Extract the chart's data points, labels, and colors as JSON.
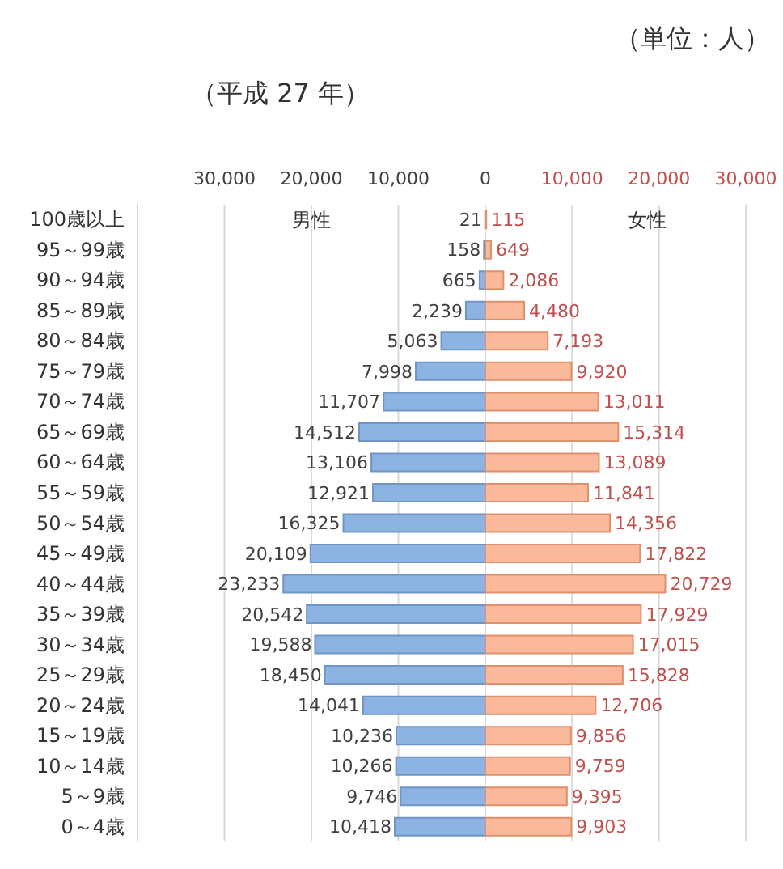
{
  "chart_data": [
    {
      "type": "bar",
      "orientation": "horizontal",
      "title": "（平成 27 年）",
      "annotations": [
        "（単位：人）"
      ],
      "categories": [
        "100歳以上",
        "95～99歳",
        "90～94歳",
        "85～89歳",
        "80～84歳",
        "75～79歳",
        "70～74歳",
        "65～69歳",
        "60～64歳",
        "55～59歳",
        "50～54歳",
        "45～49歳",
        "40～44歳",
        "35～39歳",
        "30～34歳",
        "25～29歳",
        "20～24歳",
        "15～19歳",
        "10～14歳",
        "5～9歳",
        "0～4歳"
      ],
      "series": [
        {
          "name": "男性",
          "color": "#8db3e2",
          "values": [
            21,
            158,
            665,
            2239,
            5063,
            7998,
            11707,
            14512,
            13106,
            12921,
            16325,
            20109,
            23233,
            20542,
            19588,
            18450,
            14041,
            10236,
            10266,
            9746,
            10418
          ],
          "value_labels": [
            "21",
            "158",
            "665",
            "2,239",
            "5,063",
            "7,998",
            "11,707",
            "14,512",
            "13,106",
            "12,921",
            "16,325",
            "20,109",
            "23,233",
            "20,542",
            "19,588",
            "18,450",
            "14,041",
            "10,236",
            "10,266",
            "9,746",
            "10,418"
          ]
        }
      ],
      "xlim": [
        40000,
        0
      ],
      "xticks": [
        {
          "value": 40000,
          "label": null
        },
        {
          "value": 30000,
          "label": "30,000"
        },
        {
          "value": 20000,
          "label": "20,000"
        },
        {
          "value": 10000,
          "label": "10,000"
        },
        0
      ],
      "grid": "x"
    },
    {
      "type": "bar",
      "orientation": "horizontal",
      "categories": [
        null,
        null,
        null,
        null,
        null,
        null,
        null,
        null,
        null,
        null,
        null,
        null,
        null,
        null,
        null,
        null,
        null,
        null,
        null,
        null,
        null
      ],
      "series": [
        {
          "name": "女性",
          "color": "#f9b99a",
          "values": [
            115,
            649,
            2086,
            4480,
            7193,
            9920,
            13011,
            15314,
            13089,
            11841,
            14356,
            17822,
            20729,
            17929,
            17015,
            15828,
            12706,
            9856,
            9759,
            9395,
            9903
          ],
          "value_labels": [
            "115",
            "649",
            "2,086",
            "4,480",
            "7,193",
            "9,920",
            "13,011",
            "15,314",
            "13,089",
            "11,841",
            "14,356",
            "17,822",
            "20,729",
            "17,929",
            "17,015",
            "15,828",
            "12,706",
            "9,856",
            "9,759",
            "9,395",
            "9,903"
          ]
        }
      ],
      "xlim": [
        0,
        30000
      ],
      "xticks": [
        {
          "value": 0,
          "label": null
        },
        {
          "value": 10000,
          "label": "10,000"
        },
        {
          "value": 20000,
          "label": "20,000"
        },
        {
          "value": 30000,
          "label": "30,000"
        }
      ],
      "tick_labels": "x",
      "grid": "x"
    }
  ]
}
